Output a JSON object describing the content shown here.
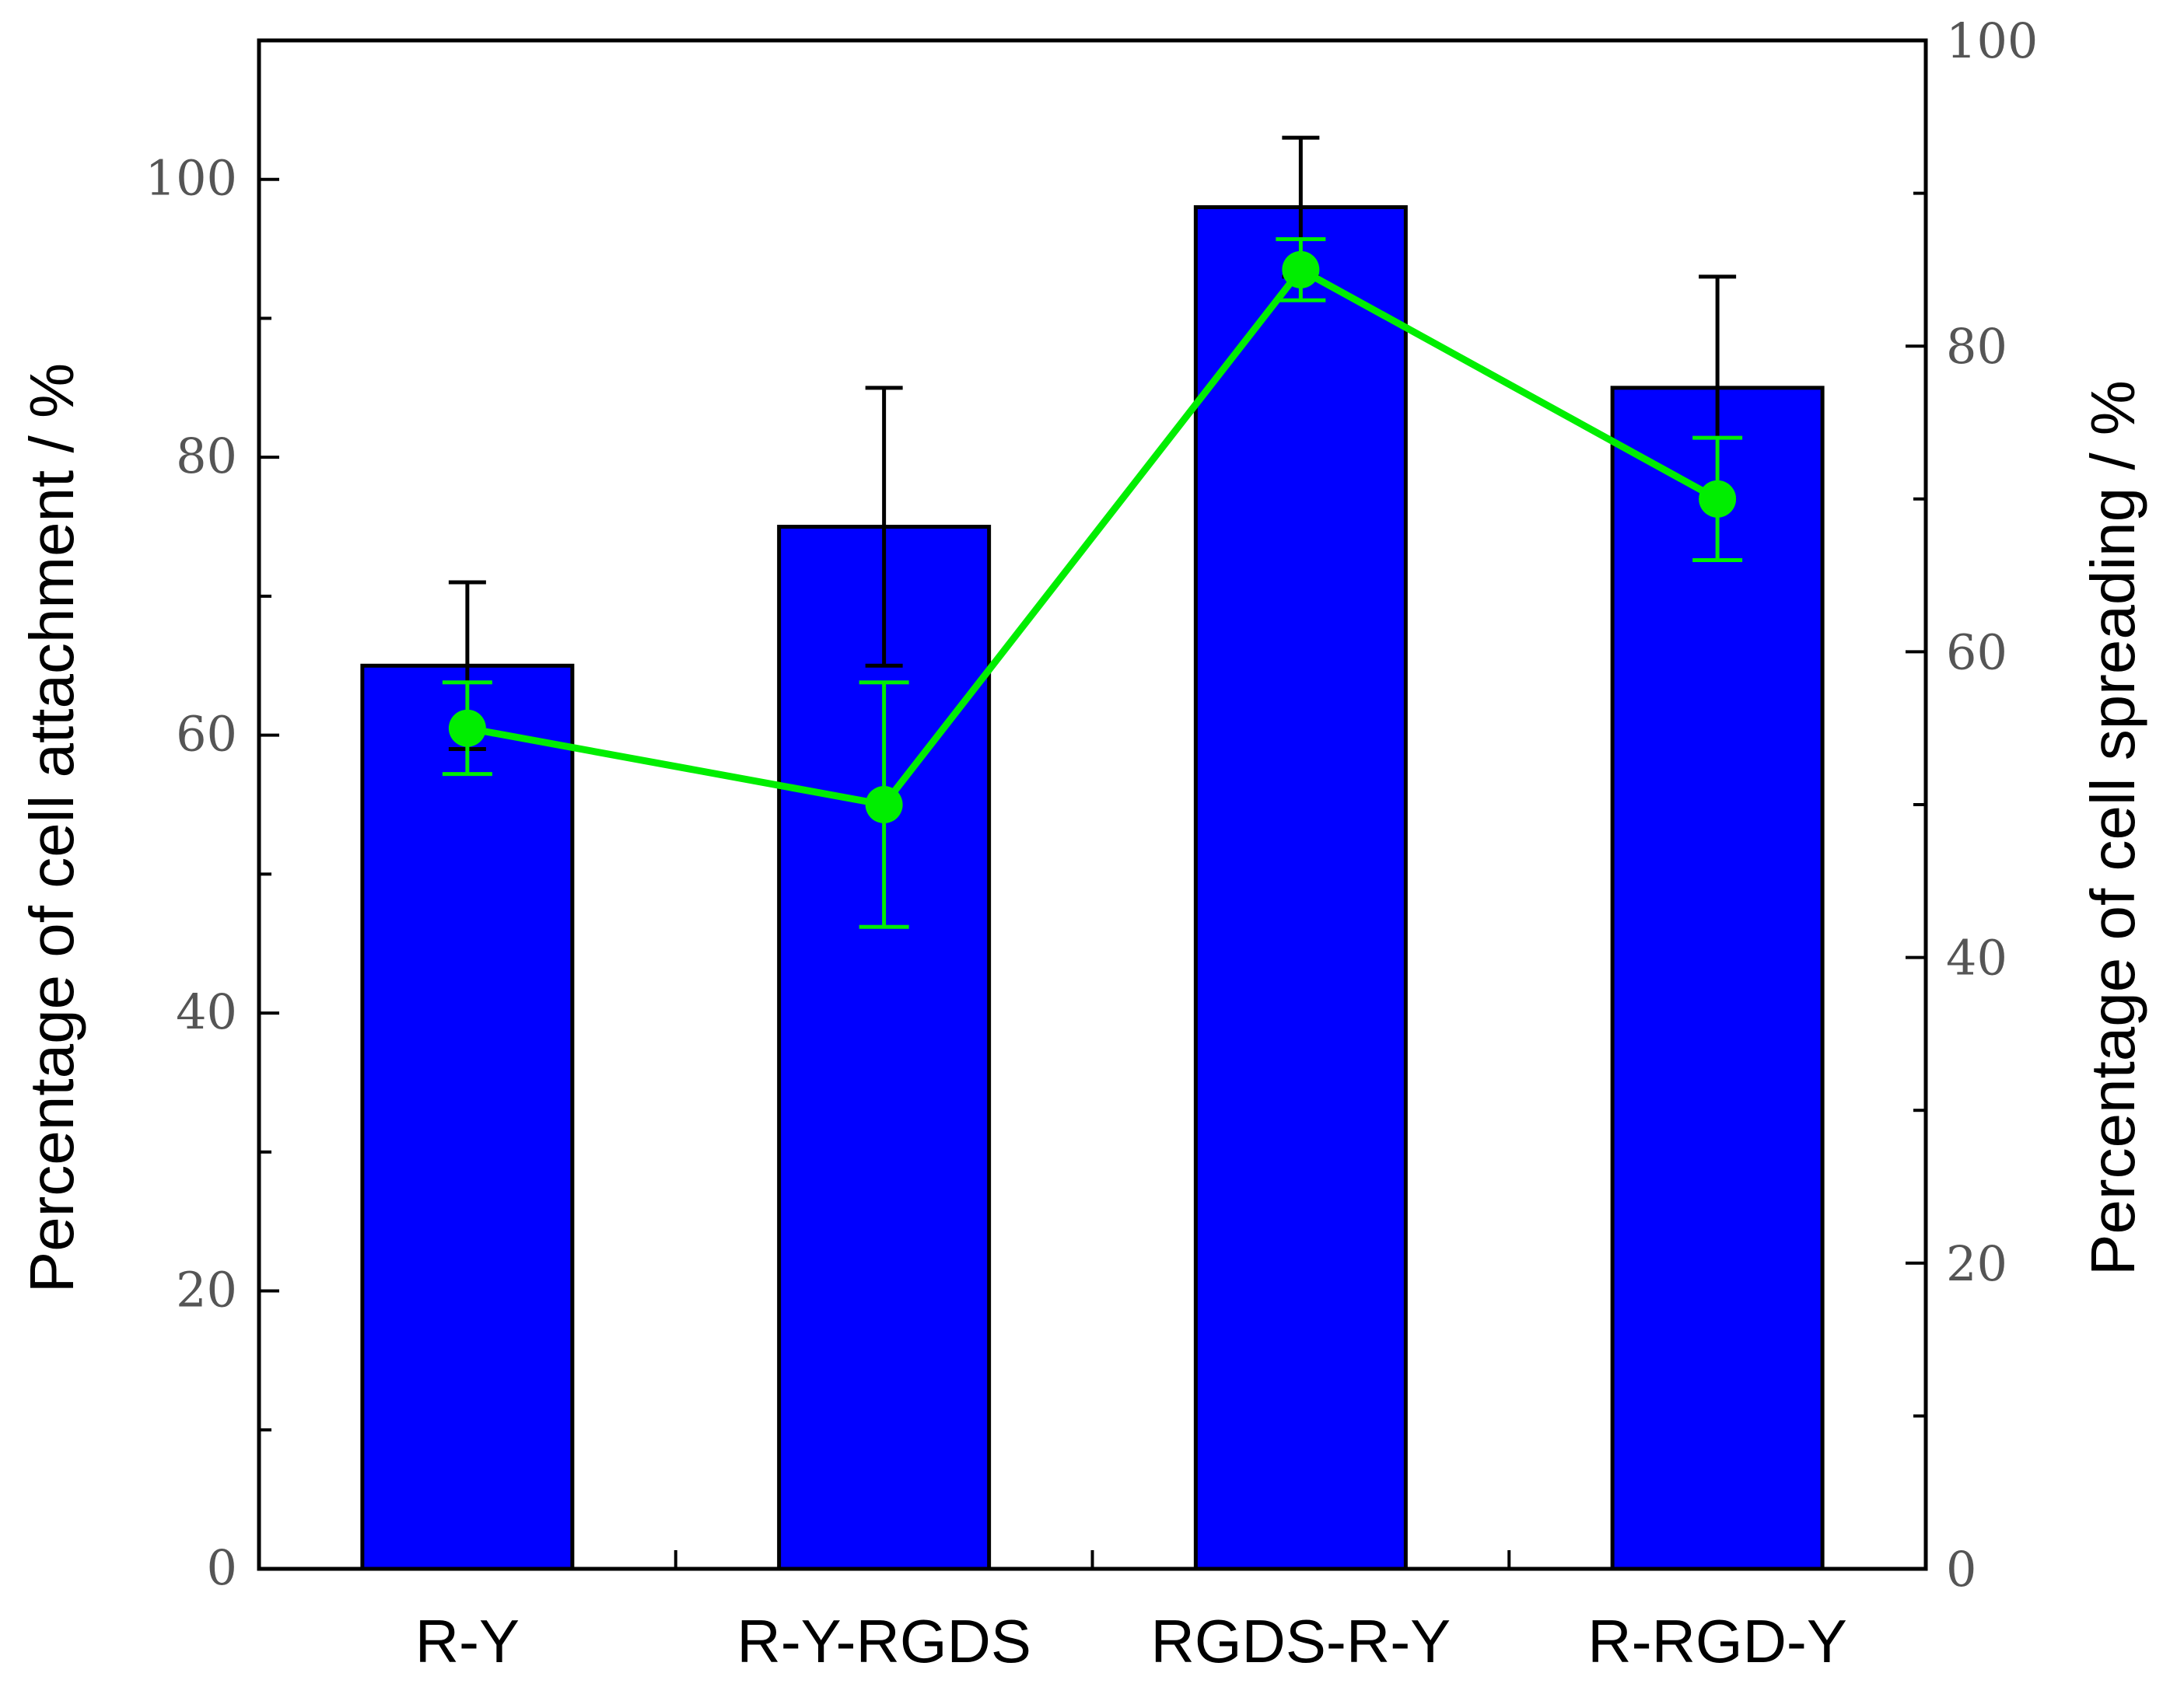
{
  "chart_data": {
    "type": "bar",
    "categories": [
      "R-Y",
      "R-Y-RGDS",
      "RGDS-R-Y",
      "R-RGD-Y"
    ],
    "left_axis": {
      "label": "Percentage of cell attachment / %",
      "ylim": [
        0,
        110
      ],
      "ticks": [
        0,
        20,
        40,
        60,
        80,
        100
      ]
    },
    "right_axis": {
      "label": "Percentage of cell spreading / %",
      "ylim": [
        0,
        100
      ],
      "ticks": [
        0,
        20,
        40,
        60,
        80,
        100
      ]
    },
    "series": [
      {
        "kind": "bar",
        "axis": "left",
        "values": [
          65,
          75,
          98,
          85
        ],
        "errors": [
          6,
          10,
          5,
          8
        ],
        "color": "#0000ff"
      },
      {
        "kind": "line",
        "axis": "right",
        "values": [
          55,
          50,
          85,
          70
        ],
        "errors": [
          3,
          8,
          2,
          4
        ],
        "color": "#00ee00"
      }
    ],
    "grid": false,
    "legend": "none"
  }
}
